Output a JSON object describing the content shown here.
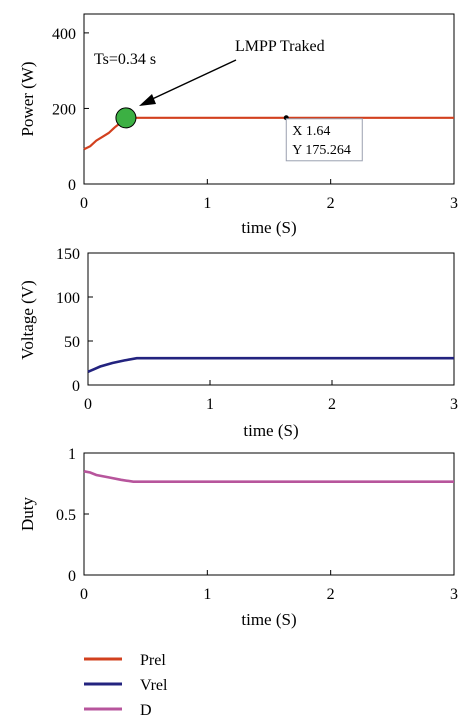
{
  "colors": {
    "power": "#d2401e",
    "voltage": "#23237f",
    "duty": "#b7559c",
    "marker": "#3cb043",
    "datatip_border": "#9aa0b0"
  },
  "chart_data": [
    {
      "type": "line",
      "xlabel": "time (S)",
      "ylabel": "Power (W)",
      "xlim": [
        0,
        3
      ],
      "ylim": [
        0,
        450
      ],
      "xticks": [
        0,
        1,
        2,
        3
      ],
      "xtick_labels": [
        "0",
        "1",
        "2",
        "3"
      ],
      "yticks": [
        0,
        200,
        400
      ],
      "ytick_labels": [
        "0",
        "200",
        "400"
      ],
      "series": [
        {
          "name": "Prel",
          "x": [
            0.0,
            0.05,
            0.1,
            0.15,
            0.2,
            0.25,
            0.3,
            0.34,
            0.4,
            1.0,
            1.64,
            2.0,
            3.0
          ],
          "y": [
            92,
            100,
            115,
            125,
            135,
            150,
            163,
            175,
            175.3,
            175.3,
            175.264,
            175.3,
            175.3
          ]
        }
      ],
      "annotations": {
        "ts_text": "Ts=0.34 s",
        "arrow_text": "LMPP Traked",
        "marker_x": 0.34,
        "marker_y": 175,
        "datatip_x": 1.64,
        "datatip_y": 175.264,
        "datatip_line1": "X 1.64",
        "datatip_line2": "Y 175.264"
      }
    },
    {
      "type": "line",
      "xlabel": "time (S)",
      "ylabel": "Voltage (V)",
      "xlim": [
        0,
        3
      ],
      "ylim": [
        0,
        150
      ],
      "xticks": [
        0,
        1,
        2,
        3
      ],
      "xtick_labels": [
        "0",
        "1",
        "2",
        "3"
      ],
      "yticks": [
        0,
        50,
        100,
        150
      ],
      "ytick_labels": [
        "0",
        "50",
        "100",
        "150"
      ],
      "series": [
        {
          "name": "Vrel",
          "x": [
            0.0,
            0.05,
            0.1,
            0.2,
            0.3,
            0.4,
            1.0,
            2.0,
            3.0
          ],
          "y": [
            15,
            18,
            21,
            25,
            28,
            30.5,
            30.5,
            30.5,
            30.5
          ]
        }
      ]
    },
    {
      "type": "line",
      "xlabel": "time (S)",
      "ylabel": "Duty",
      "xlim": [
        0,
        3
      ],
      "ylim": [
        0,
        1
      ],
      "xticks": [
        0,
        1,
        2,
        3
      ],
      "xtick_labels": [
        "0",
        "1",
        "2",
        "3"
      ],
      "yticks": [
        0,
        0.5,
        1
      ],
      "ytick_labels": [
        "0",
        "0.5",
        "1"
      ],
      "series": [
        {
          "name": "D",
          "x": [
            0.0,
            0.05,
            0.1,
            0.2,
            0.3,
            0.4,
            1.0,
            2.0,
            3.0
          ],
          "y": [
            0.85,
            0.84,
            0.82,
            0.8,
            0.78,
            0.765,
            0.765,
            0.765,
            0.765
          ]
        }
      ]
    }
  ],
  "legend": [
    {
      "name": "Prel",
      "color": "#d2401e"
    },
    {
      "name": "Vrel",
      "color": "#23237f"
    },
    {
      "name": "D",
      "color": "#b7559c"
    }
  ]
}
